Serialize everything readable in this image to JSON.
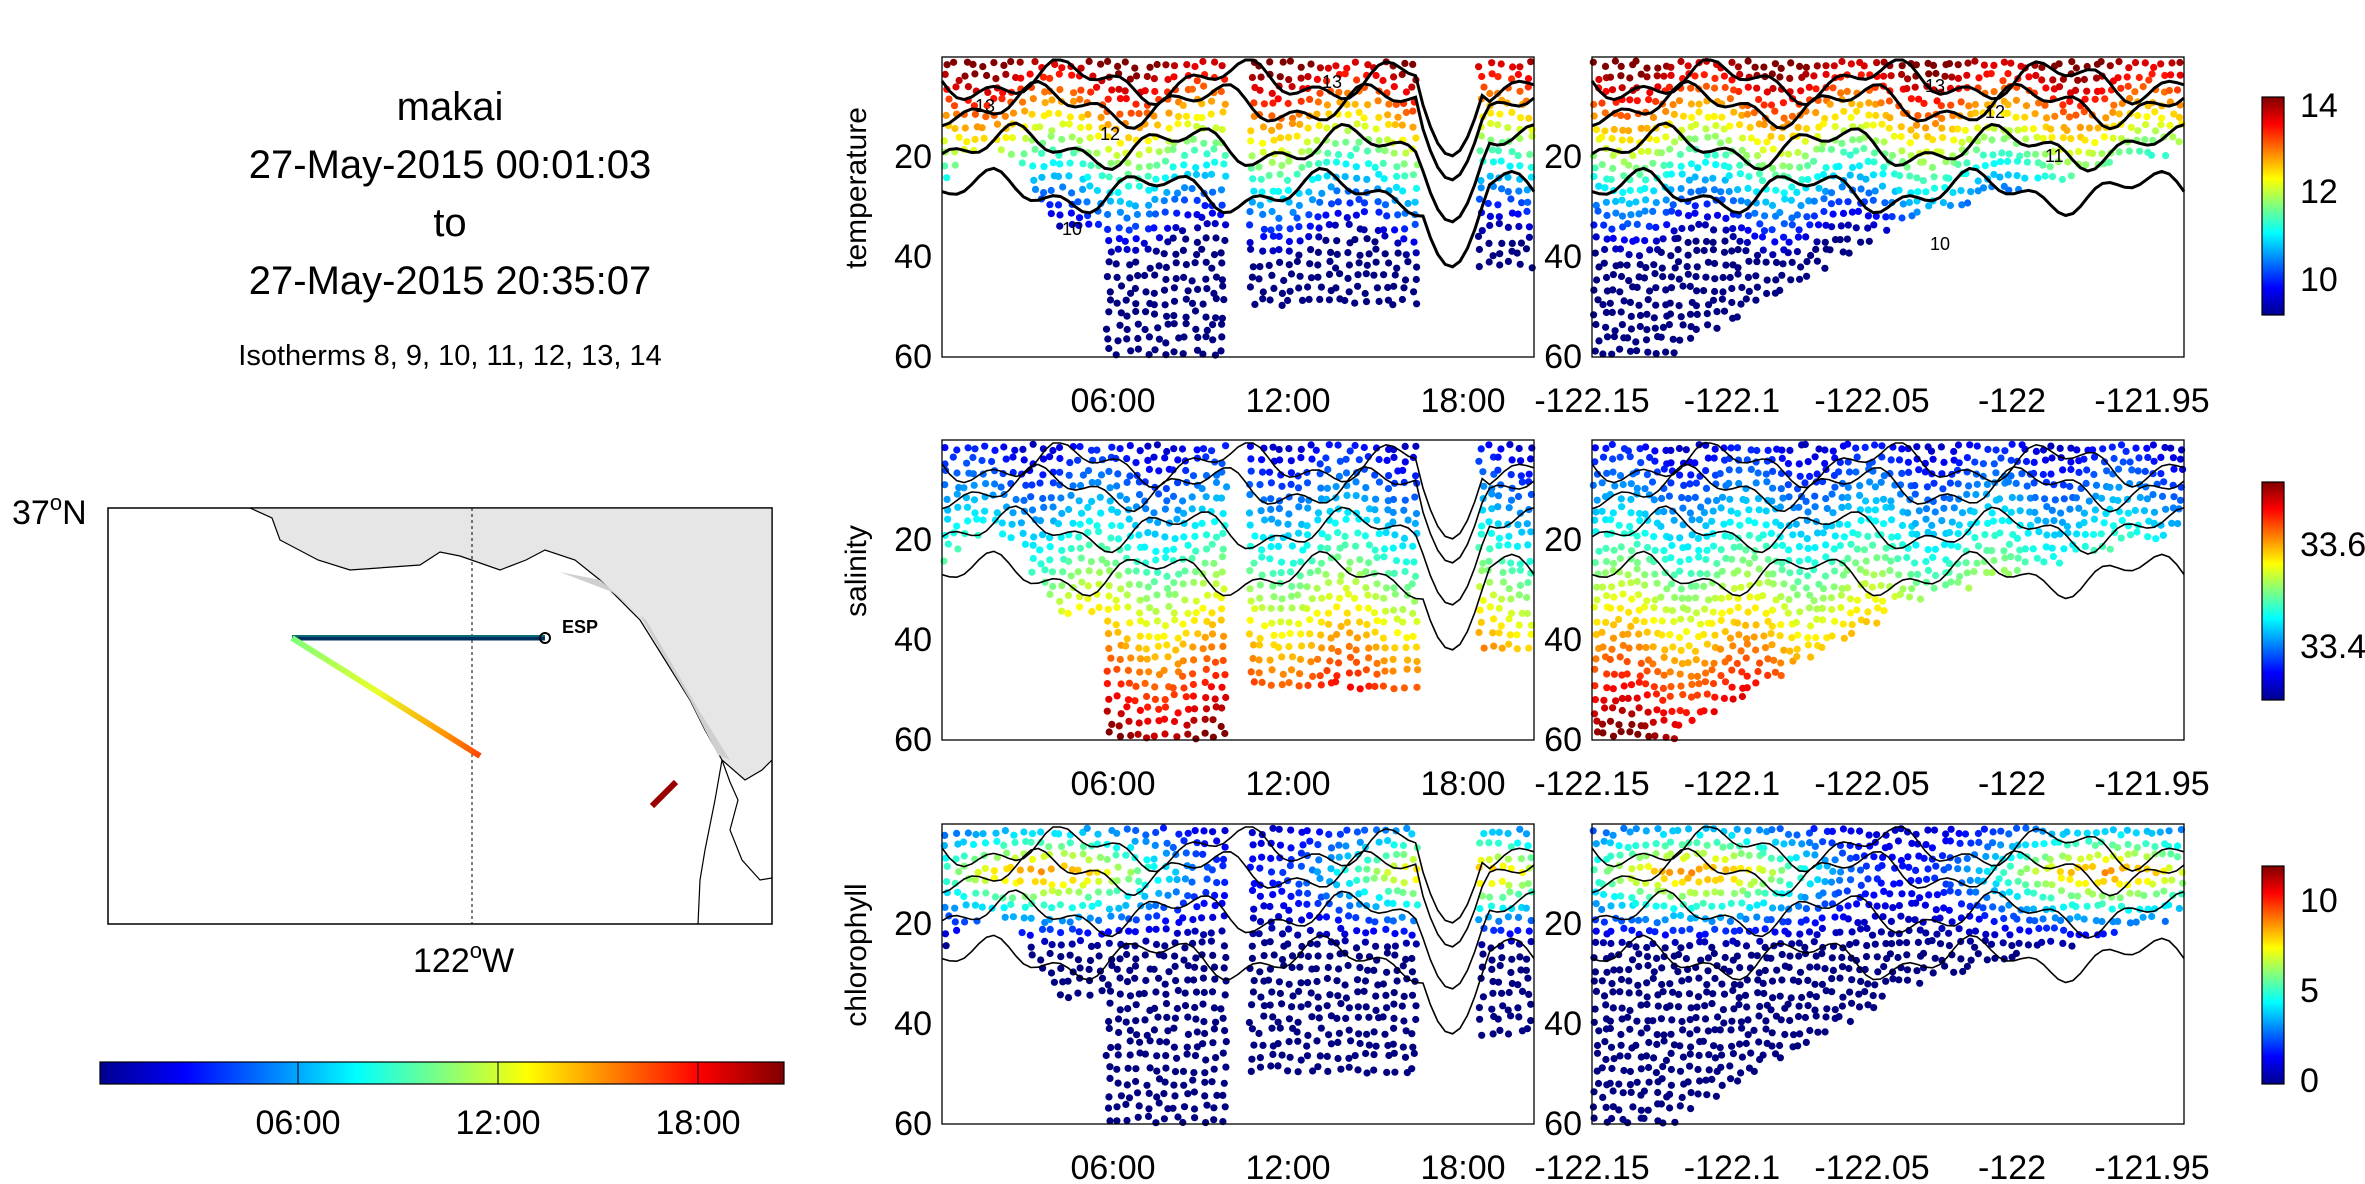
{
  "header": {
    "vehicle": "makai",
    "start": "27-May-2015 00:01:03",
    "to": "to",
    "end": "27-May-2015 20:35:07",
    "isotherms": "Isotherms 8, 9, 10, 11, 12, 13, 14"
  },
  "map": {
    "lat_label": "37",
    "lat_dir": "N",
    "lon_label": "122",
    "lon_dir": "W",
    "degree_symbol": "o",
    "station_label": "ESP",
    "land_color": "#e6e6e6"
  },
  "time_colorbar": {
    "ticks": [
      "06:00",
      "12:00",
      "18:00"
    ],
    "colormap": "jet"
  },
  "chart_data": [
    {
      "type": "scatter",
      "name": "temperature vs time",
      "ylabel": "temperature",
      "y_reversed": true,
      "ylim": [
        0,
        60
      ],
      "y_ticks": [
        "20",
        "40",
        "60"
      ],
      "x_ticks": [
        "06:00",
        "12:00",
        "18:00"
      ],
      "xlim_hours": [
        0,
        20.6
      ],
      "contour_labels": [
        "13",
        "12",
        "11",
        "10",
        "13"
      ],
      "colorbar": {
        "ticks": [
          "10",
          "12",
          "14"
        ],
        "range": [
          9,
          14
        ]
      }
    },
    {
      "type": "scatter",
      "name": "temperature vs longitude",
      "ylabel": "",
      "y_reversed": true,
      "ylim": [
        0,
        60
      ],
      "y_ticks": [
        "20",
        "40",
        "60"
      ],
      "x_ticks": [
        "-122.15",
        "-122.1",
        "-122.05",
        "-122",
        "-121.95"
      ],
      "xlim": [
        -122.15,
        -121.94
      ],
      "contour_labels": [
        "13",
        "12",
        "11",
        "10"
      ]
    },
    {
      "type": "scatter",
      "name": "salinity vs time",
      "ylabel": "salinity",
      "y_reversed": true,
      "ylim": [
        0,
        60
      ],
      "y_ticks": [
        "20",
        "40",
        "60"
      ],
      "x_ticks": [
        "06:00",
        "12:00",
        "18:00"
      ],
      "colorbar": {
        "ticks": [
          "33.4",
          "33.6"
        ],
        "range": [
          33.3,
          33.7
        ]
      }
    },
    {
      "type": "scatter",
      "name": "salinity vs longitude",
      "ylabel": "",
      "y_reversed": true,
      "ylim": [
        0,
        60
      ],
      "y_ticks": [
        "20",
        "40",
        "60"
      ],
      "x_ticks": [
        "-122.15",
        "-122.1",
        "-122.05",
        "-122",
        "-121.95"
      ]
    },
    {
      "type": "scatter",
      "name": "chlorophyll vs time",
      "ylabel": "chlorophyll",
      "y_reversed": true,
      "ylim": [
        0,
        60
      ],
      "y_ticks": [
        "20",
        "40",
        "60"
      ],
      "x_ticks": [
        "06:00",
        "12:00",
        "18:00"
      ],
      "colorbar": {
        "ticks": [
          "0",
          "5",
          "10"
        ],
        "range": [
          0,
          12
        ]
      }
    },
    {
      "type": "scatter",
      "name": "chlorophyll vs longitude",
      "ylabel": "",
      "y_reversed": true,
      "ylim": [
        0,
        60
      ],
      "y_ticks": [
        "20",
        "40",
        "60"
      ],
      "x_ticks": [
        "-122.15",
        "-122.1",
        "-122.05",
        "-122",
        "-121.95"
      ]
    }
  ]
}
